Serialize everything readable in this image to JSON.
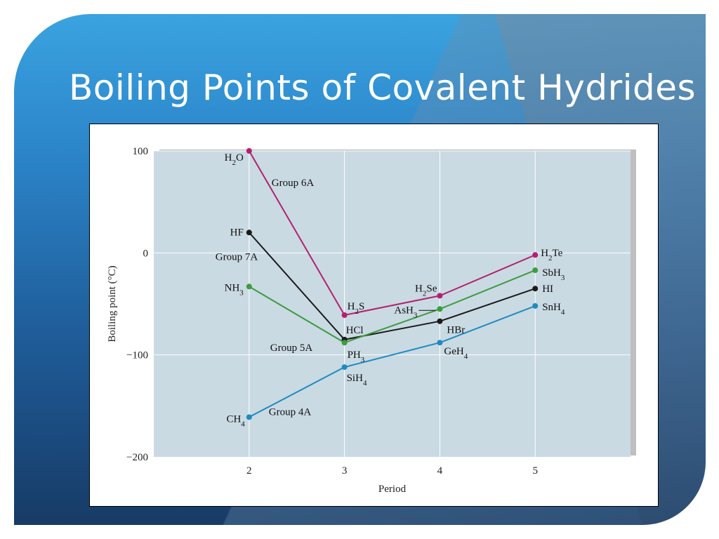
{
  "slide": {
    "title": "Boiling Points of Covalent Hydrides"
  },
  "chart_data": {
    "type": "line",
    "title": "",
    "xlabel": "Period",
    "ylabel": "Boiling point (°C)",
    "x": [
      2,
      3,
      4,
      5
    ],
    "xlim": [
      1,
      6
    ],
    "ylim": [
      -200,
      100
    ],
    "xticks": [
      2,
      3,
      4,
      5
    ],
    "yticks": [
      100,
      0,
      -100,
      -200
    ],
    "grid": true,
    "legend": "none",
    "series": [
      {
        "name": "Group 6A",
        "color": "#b3216f",
        "values": [
          100,
          -61,
          -42,
          -2
        ],
        "point_labels": [
          "H2O",
          "H2S",
          "H2Se",
          "H2Te"
        ]
      },
      {
        "name": "Group 7A",
        "color": "#1a1a1a",
        "values": [
          20,
          -85,
          -67,
          -35
        ],
        "point_labels": [
          "HF",
          "HCl",
          "HBr",
          "HI"
        ]
      },
      {
        "name": "Group 5A",
        "color": "#3e9b3e",
        "values": [
          -33,
          -88,
          -55,
          -17
        ],
        "point_labels": [
          "NH3",
          "PH3",
          "AsH3",
          "SbH3"
        ]
      },
      {
        "name": "Group 4A",
        "color": "#1f8bc0",
        "values": [
          -161,
          -112,
          -88,
          -52
        ],
        "point_labels": [
          "CH4",
          "SiH4",
          "GeH4",
          "SnH4"
        ]
      }
    ]
  }
}
